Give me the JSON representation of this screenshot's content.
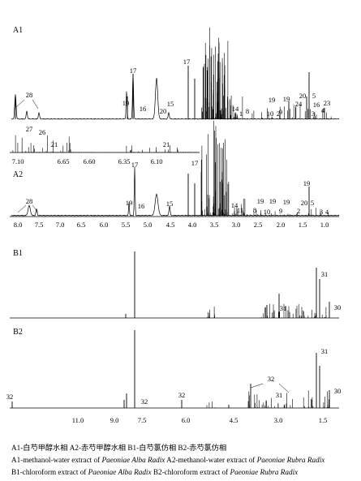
{
  "figure": {
    "panels": [
      {
        "label": "A1",
        "peaks": [
          "28",
          "19",
          "17",
          "16",
          "20",
          "15",
          "17",
          "14",
          "1",
          "8",
          "10",
          "19",
          "2",
          "9",
          "24",
          "19",
          "20",
          "5",
          "3",
          "16",
          "23",
          "4"
        ]
      },
      {
        "label": "A1-inset",
        "peaks": [
          "27",
          "26",
          "21",
          "21"
        ],
        "ticks": [
          "7.10",
          "6.65",
          "6.60",
          "6.35",
          "6.10"
        ]
      },
      {
        "label": "A2",
        "peaks": [
          "28",
          "19",
          "17",
          "16",
          "15",
          "17",
          "14",
          "11",
          "8",
          "19",
          "10",
          "19",
          "9",
          "19",
          "2",
          "20",
          "5",
          "3",
          "4"
        ],
        "ticks": [
          "8.0",
          "7.5",
          "7.0",
          "6.5",
          "6.0",
          "5.5",
          "5.0",
          "4.5",
          "4.0",
          "3.5",
          "3.0",
          "2.5",
          "2.0",
          "1.5",
          "1.0"
        ]
      },
      {
        "label": "B1",
        "peaks": [
          "31",
          "31",
          "30"
        ]
      },
      {
        "label": "B2",
        "peaks": [
          "32",
          "32",
          "32",
          "32",
          "31",
          "31",
          "30"
        ],
        "ticks": [
          "11.0",
          "9.0",
          "7.5",
          "6.0",
          "4.5",
          "3.0",
          "1.5"
        ]
      }
    ]
  },
  "caption": {
    "line1": "A1-白芍甲醇水相   A2-赤芍甲醇水相   B1-白芍氯仿相   B2-赤芍氯仿相",
    "line2_a": "A1-methanol-water extract of ",
    "line2_b": "Paeoniae Alba Radix",
    "line2_c": "   A2-methanol-water extract of ",
    "line2_d": "Paeoniae Rubra Radix",
    "line3_a": "B1-chloroform extract of ",
    "line3_b": "Paeoniae Alba Radix",
    "line3_c": "   B2-chloroform extract of ",
    "line3_d": "Paeoniae Rubra Radix"
  },
  "chart_data": [
    {
      "type": "line",
      "panel": "A1",
      "series": [
        {
          "values": [
            [
              8.0,
              0.28
            ],
            [
              7.85,
              0.06
            ],
            [
              7.7,
              0.22
            ],
            [
              7.6,
              0.15
            ],
            [
              7.5,
              0.1
            ],
            [
              5.45,
              0.22
            ],
            [
              5.35,
              0.62
            ],
            [
              5.2,
              0.1
            ],
            [
              4.95,
              0.52
            ],
            [
              4.75,
              0.08
            ],
            [
              4.55,
              0.1
            ],
            [
              4.1,
              0.7
            ],
            [
              3.95,
              0.55
            ],
            [
              3.85,
              1.0
            ],
            [
              3.75,
              0.9
            ],
            [
              3.65,
              0.6
            ],
            [
              3.55,
              0.3
            ],
            [
              3.4,
              0.15
            ],
            [
              3.2,
              0.12
            ],
            [
              2.9,
              0.06
            ],
            [
              2.7,
              0.08
            ],
            [
              2.5,
              0.12
            ],
            [
              2.3,
              0.06
            ],
            [
              2.1,
              0.1
            ],
            [
              1.95,
              0.16
            ],
            [
              1.8,
              0.08
            ],
            [
              1.6,
              0.12
            ],
            [
              1.45,
              0.22
            ],
            [
              1.4,
              0.55
            ],
            [
              1.3,
              0.14
            ],
            [
              1.2,
              0.1
            ],
            [
              1.0,
              0.08
            ]
          ]
        }
      ],
      "peak_labels": [
        "28",
        "19",
        "17",
        "16",
        "20",
        "15",
        "17",
        "14",
        "1",
        "8",
        "10",
        "19",
        "2",
        "9",
        "24",
        "19",
        "20",
        "5",
        "3",
        "16",
        "23",
        "4"
      ]
    },
    {
      "type": "line",
      "panel": "A1-inset",
      "xticks": [
        "7.10",
        "6.65",
        "6.60",
        "6.35",
        "6.10"
      ],
      "peak_labels": [
        "27",
        "26",
        "21",
        "21"
      ]
    },
    {
      "type": "line",
      "panel": "A2",
      "xlim": [
        8.2,
        0.85
      ],
      "xticks": [
        "8.0",
        "7.5",
        "7.0",
        "6.5",
        "6.0",
        "5.5",
        "5.0",
        "4.5",
        "4.0",
        "3.5",
        "3.0",
        "2.5",
        "2.0",
        "1.5",
        "1.0"
      ],
      "series": [
        {
          "values": [
            [
              7.95,
              0.12
            ],
            [
              7.7,
              0.16
            ],
            [
              7.5,
              0.1
            ],
            [
              5.5,
              0.15
            ],
            [
              5.35,
              0.6
            ],
            [
              5.2,
              0.1
            ],
            [
              4.95,
              0.22
            ],
            [
              4.6,
              0.1
            ],
            [
              4.1,
              0.45
            ],
            [
              3.95,
              0.5
            ],
            [
              3.85,
              1.0
            ],
            [
              3.7,
              0.95
            ],
            [
              3.6,
              0.5
            ],
            [
              3.4,
              0.2
            ],
            [
              3.2,
              0.1
            ],
            [
              2.7,
              0.06
            ],
            [
              2.3,
              0.05
            ],
            [
              1.9,
              0.06
            ],
            [
              1.45,
              0.1
            ],
            [
              1.4,
              0.42
            ],
            [
              1.0,
              0.05
            ]
          ]
        }
      ],
      "peak_labels": [
        "28",
        "19",
        "17",
        "16",
        "15",
        "17",
        "14",
        "11",
        "8",
        "19",
        "10",
        "19",
        "9",
        "19",
        "2",
        "20",
        "5",
        "3",
        "4"
      ]
    },
    {
      "type": "line",
      "panel": "B1",
      "series": [
        {
          "values": [
            [
              7.8,
              0.08
            ],
            [
              7.5,
              1.0
            ],
            [
              7.2,
              0.06
            ],
            [
              5.3,
              0.06
            ],
            [
              4.8,
              0.2
            ],
            [
              4.7,
              0.12
            ],
            [
              3.7,
              0.16
            ],
            [
              3.3,
              0.06
            ],
            [
              2.9,
              0.18
            ],
            [
              2.3,
              0.3
            ],
            [
              2.0,
              0.16
            ],
            [
              1.6,
              0.2
            ],
            [
              1.4,
              0.8
            ],
            [
              1.3,
              0.6
            ],
            [
              1.0,
              0.2
            ],
            [
              0.9,
              0.25
            ]
          ]
        }
      ],
      "peak_labels": [
        "31",
        "31",
        "30"
      ]
    },
    {
      "type": "line",
      "panel": "B2",
      "xticks": [
        "11.0",
        "9.0",
        "7.5",
        "6.0",
        "4.5",
        "3.0",
        "1.5"
      ],
      "series": [
        {
          "values": [
            [
              12.4,
              0.1
            ],
            [
              7.9,
              0.1
            ],
            [
              7.8,
              0.2
            ],
            [
              7.7,
              0.1
            ],
            [
              7.5,
              1.0
            ],
            [
              6.2,
              0.1
            ],
            [
              5.3,
              0.06
            ],
            [
              4.8,
              0.12
            ],
            [
              3.7,
              0.3
            ],
            [
              3.3,
              0.06
            ],
            [
              2.9,
              0.12
            ],
            [
              2.3,
              0.3
            ],
            [
              2.0,
              0.22
            ],
            [
              1.6,
              0.18
            ],
            [
              1.4,
              0.82
            ],
            [
              1.3,
              0.6
            ],
            [
              1.0,
              0.22
            ],
            [
              0.9,
              0.28
            ]
          ]
        }
      ],
      "peak_labels": [
        "32",
        "32",
        "32",
        "32",
        "31",
        "31",
        "30"
      ]
    }
  ]
}
